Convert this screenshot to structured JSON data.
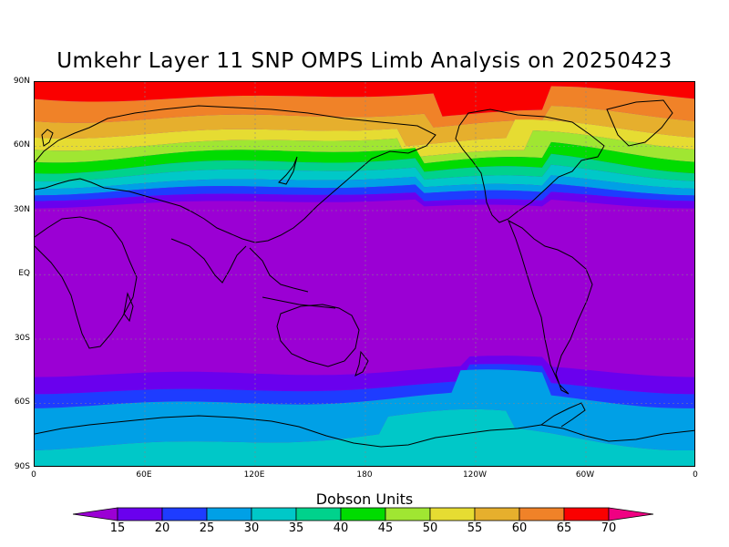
{
  "title": "Umkehr Layer 11 SNP OMPS Limb Analysis on 20250423",
  "map": {
    "projection": "cylindrical-equidistant",
    "lat_labels": [
      "90N",
      "60N",
      "30N",
      "EQ",
      "30S",
      "60S",
      "90S"
    ],
    "lon_labels": [
      "0",
      "60E",
      "120E",
      "180",
      "120W",
      "60W",
      "0"
    ],
    "gridlines": "dotted"
  },
  "colorbar": {
    "title": "Dobson Units",
    "tick_labels": [
      "15",
      "20",
      "25",
      "30",
      "35",
      "40",
      "45",
      "50",
      "55",
      "60",
      "65",
      "70"
    ],
    "colors": [
      "#9b00d4",
      "#6a00ee",
      "#1e3cff",
      "#00a0e6",
      "#00c8c8",
      "#00d28c",
      "#00dc00",
      "#a0e632",
      "#e6dc32",
      "#e6af2d",
      "#f08228",
      "#fa0000",
      "#f00082"
    ]
  },
  "chart_data": {
    "type": "heatmap",
    "title": "Umkehr Layer 11 SNP OMPS Limb Analysis on 20250423",
    "variable": "Dobson Units",
    "contour_levels": [
      15,
      20,
      25,
      30,
      35,
      40,
      45,
      50,
      55,
      60,
      65,
      70
    ],
    "xlim": [
      0,
      360
    ],
    "ylim": [
      -90,
      90
    ],
    "description_values": {
      "north_pole_max": 70,
      "tropics": 15,
      "south_polar_region": 35
    }
  }
}
